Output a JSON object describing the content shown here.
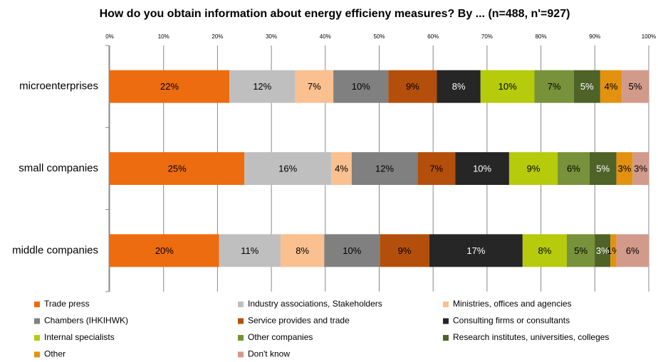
{
  "chart_data": {
    "type": "stacked-bar-horizontal",
    "title": "How do you obtain information about energy efficieny measures? By ... (n=488, n'=927)",
    "categories": [
      "microenterprises",
      "small companies",
      "middle companies"
    ],
    "xlim": [
      0,
      100
    ],
    "xticks": [
      {
        "value": 0,
        "label": "0%"
      },
      {
        "value": 10,
        "label": "10%"
      },
      {
        "value": 20,
        "label": "20%"
      },
      {
        "value": 30,
        "label": "30%"
      },
      {
        "value": 40,
        "label": "40%"
      },
      {
        "value": 50,
        "label": "50%"
      },
      {
        "value": 60,
        "label": "60%"
      },
      {
        "value": 70,
        "label": "70%"
      },
      {
        "value": 80,
        "label": "80%"
      },
      {
        "value": 90,
        "label": "90%"
      },
      {
        "value": 100,
        "label": "100%"
      }
    ],
    "grid": true,
    "legend": "bottom",
    "series": [
      {
        "name": "Trade press",
        "color": "#ed6c10",
        "text_color": "#000",
        "values": [
          22.2,
          25.0,
          20.3
        ],
        "value_labels": [
          "22%",
          "25%",
          "20%"
        ]
      },
      {
        "name": "Industry associations, Stakeholders",
        "color": "#bfbfbf",
        "text_color": "#000",
        "values": [
          12.2,
          16.1,
          11.4
        ],
        "value_labels": [
          "12%",
          "16%",
          "11%"
        ]
      },
      {
        "name": "Ministries, offices and agencies",
        "color": "#fac090",
        "text_color": "#000",
        "values": [
          7.1,
          3.8,
          8.1
        ],
        "value_labels": [
          "7%",
          "4%",
          "8%"
        ]
      },
      {
        "name": "Chambers (IHKIHWK)",
        "color": "#808080",
        "text_color": "#000",
        "values": [
          10.2,
          12.2,
          10.3
        ],
        "value_labels": [
          "10%",
          "12%",
          "10%"
        ]
      },
      {
        "name": "Service provides and trade",
        "color": "#b34f0b",
        "text_color": "#000",
        "values": [
          9.0,
          7.0,
          9.2
        ],
        "value_labels": [
          "9%",
          "7%",
          "9%"
        ]
      },
      {
        "name": "Consulting firms or consultants",
        "color": "#262626",
        "text_color": "#fff",
        "values": [
          8.1,
          10.0,
          17.3
        ],
        "value_labels": [
          "8%",
          "10%",
          "17%"
        ]
      },
      {
        "name": "Internal specialists",
        "color": "#b5cb0b",
        "text_color": "#000",
        "values": [
          10.0,
          9.0,
          8.2
        ],
        "value_labels": [
          "10%",
          "9%",
          "8%"
        ]
      },
      {
        "name": "Other companies",
        "color": "#77923a",
        "text_color": "#000",
        "values": [
          7.3,
          5.9,
          5.2
        ],
        "value_labels": [
          "7%",
          "6%",
          "5%"
        ]
      },
      {
        "name": "Research institutes, universities, colleges",
        "color": "#4f6228",
        "text_color": "#fff",
        "values": [
          4.9,
          5.0,
          2.9
        ],
        "value_labels": [
          "5%",
          "5%",
          "3%"
        ]
      },
      {
        "name": "Other",
        "color": "#e3920f",
        "text_color": "#000",
        "values": [
          4.0,
          3.0,
          1.1
        ],
        "value_labels": [
          "4%",
          "3%",
          "1%"
        ]
      },
      {
        "name": "Don't know",
        "color": "#d29a8b",
        "text_color": "#000",
        "values": [
          5.0,
          3.0,
          6.0
        ],
        "value_labels": [
          "5%",
          "3%",
          "6%"
        ]
      }
    ]
  }
}
